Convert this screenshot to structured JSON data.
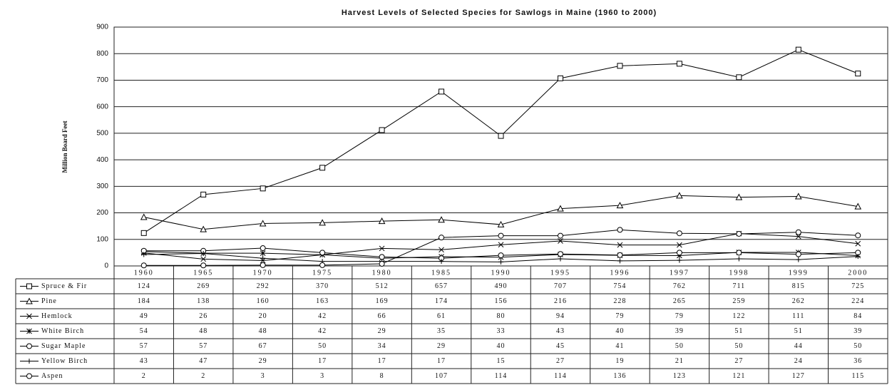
{
  "chart_data": {
    "type": "line",
    "title": "Harvest Levels of Selected Species for Sawlogs in Maine (1960 to 2000)",
    "y_label": "Million Board Feet",
    "categories": [
      "1960",
      "1965",
      "1970",
      "1975",
      "1980",
      "1985",
      "1990",
      "1995",
      "1996",
      "1997",
      "1998",
      "1999",
      "2000"
    ],
    "ylim": [
      0,
      900
    ],
    "yticks": [
      0,
      100,
      200,
      300,
      400,
      500,
      600,
      700,
      800,
      900
    ],
    "grid": true,
    "series": [
      {
        "name": "Spruce & Fir",
        "color": "#000",
        "marker": "square",
        "values": [
          124,
          269,
          292,
          370,
          512,
          657,
          490,
          707,
          754,
          762,
          711,
          815,
          725
        ]
      },
      {
        "name": "Pine",
        "color": "#000",
        "marker": "triangle",
        "values": [
          184,
          138,
          160,
          163,
          169,
          174,
          156,
          216,
          228,
          265,
          259,
          262,
          224
        ]
      },
      {
        "name": "Hemlock",
        "color": "#000",
        "marker": "x",
        "values": [
          49,
          26,
          20,
          42,
          66,
          61,
          80,
          94,
          79,
          79,
          122,
          111,
          84
        ]
      },
      {
        "name": "White Birch",
        "color": "#000",
        "marker": "star",
        "values": [
          54,
          48,
          48,
          42,
          29,
          35,
          33,
          43,
          40,
          39,
          51,
          51,
          39
        ]
      },
      {
        "name": "Sugar Maple",
        "color": "#000",
        "marker": "circle",
        "values": [
          57,
          57,
          67,
          50,
          34,
          29,
          40,
          45,
          41,
          50,
          50,
          44,
          50
        ]
      },
      {
        "name": "Yellow Birch",
        "color": "#000",
        "marker": "plus",
        "values": [
          43,
          47,
          29,
          17,
          17,
          17,
          15,
          27,
          19,
          21,
          27,
          24,
          36
        ]
      },
      {
        "name": "Aspen",
        "color": "#000",
        "marker": "circle",
        "values": [
          2,
          2,
          3,
          3,
          8,
          107,
          114,
          114,
          136,
          123,
          121,
          127,
          115
        ]
      }
    ]
  }
}
